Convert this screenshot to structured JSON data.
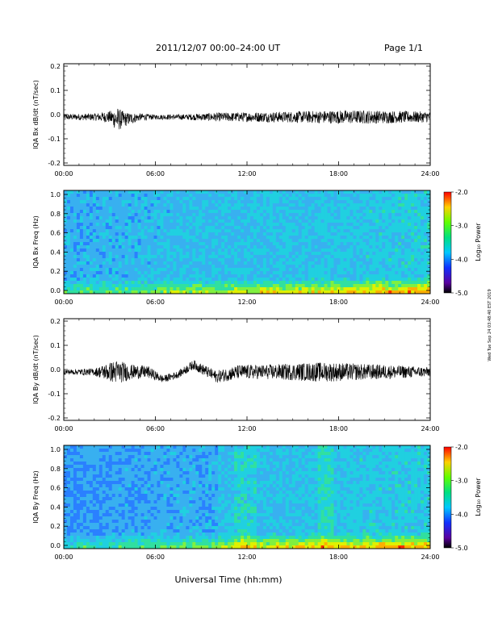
{
  "header": {
    "date_range": "2011/12/07  00:00–24:00 UT",
    "page": "Page 1/1"
  },
  "footer": {
    "xlabel": "Universal Time (hh:mm)"
  },
  "side_note": "Wed Tue Sep 24 03:48:40 EST 2019",
  "colors": {
    "trace": "#000000",
    "axis": "#000000"
  },
  "chart_data": [
    {
      "type": "line",
      "ylabel": "IQA Bx dB/dt (nT/sec)",
      "x_ticks": [
        "00:00",
        "06:00",
        "12:00",
        "18:00",
        "24:00"
      ],
      "x_range_hours": [
        0,
        24
      ],
      "ylim": [
        -0.2,
        0.2
      ],
      "y_ticks": [
        "0.2",
        "0.1",
        "0.0",
        "-0.1",
        "-0.2"
      ],
      "envelope": {
        "hours": [
          0,
          2,
          3,
          3.5,
          4,
          5,
          6,
          8,
          10,
          12,
          14,
          16,
          18,
          20,
          22,
          24
        ],
        "center": [
          -0.01,
          -0.01,
          -0.01,
          -0.02,
          -0.02,
          -0.01,
          -0.01,
          -0.01,
          -0.01,
          -0.01,
          -0.01,
          -0.01,
          -0.01,
          -0.01,
          -0.01,
          -0.01
        ],
        "amplitude": [
          0.012,
          0.015,
          0.025,
          0.05,
          0.03,
          0.015,
          0.01,
          0.012,
          0.018,
          0.02,
          0.022,
          0.025,
          0.028,
          0.028,
          0.025,
          0.022
        ]
      }
    },
    {
      "type": "heatmap",
      "ylabel": "IQA Bx Freq (Hz)",
      "x_ticks": [
        "00:00",
        "06:00",
        "12:00",
        "18:00",
        "24:00"
      ],
      "ylim": [
        0.0,
        1.0
      ],
      "y_ticks": [
        "1.0",
        "0.8",
        "0.6",
        "0.4",
        "0.2",
        "0.0"
      ],
      "colorbar": {
        "label": "Log₁₀ Power",
        "range": [
          -5.0,
          -2.0
        ],
        "ticks": [
          "-2.0",
          "-3.0",
          "-4.0",
          "-5.0"
        ]
      }
    },
    {
      "type": "line",
      "ylabel": "IQA By dB/dt (nT/sec)",
      "x_ticks": [
        "00:00",
        "06:00",
        "12:00",
        "18:00",
        "24:00"
      ],
      "x_range_hours": [
        0,
        24
      ],
      "ylim": [
        -0.2,
        0.2
      ],
      "y_ticks": [
        "0.2",
        "0.1",
        "0.0",
        "-0.1",
        "-0.2"
      ],
      "envelope": {
        "hours": [
          0,
          2,
          3,
          3.5,
          4.5,
          5.5,
          6.5,
          7.5,
          8.5,
          10,
          11.5,
          13,
          15,
          16.5,
          17.5,
          19,
          21,
          24
        ],
        "center": [
          -0.01,
          -0.01,
          -0.01,
          -0.01,
          -0.01,
          -0.01,
          -0.04,
          -0.02,
          0.02,
          -0.03,
          -0.01,
          -0.01,
          -0.01,
          -0.01,
          -0.01,
          -0.01,
          -0.01,
          -0.01
        ],
        "amplitude": [
          0.01,
          0.015,
          0.04,
          0.05,
          0.03,
          0.025,
          0.015,
          0.015,
          0.02,
          0.025,
          0.03,
          0.03,
          0.035,
          0.04,
          0.04,
          0.035,
          0.03,
          0.02
        ]
      }
    },
    {
      "type": "heatmap",
      "ylabel": "IQA By Freq (Hz)",
      "x_ticks": [
        "00:00",
        "06:00",
        "12:00",
        "18:00",
        "24:00"
      ],
      "ylim": [
        0.0,
        1.0
      ],
      "y_ticks": [
        "1.0",
        "0.8",
        "0.6",
        "0.4",
        "0.2",
        "0.0"
      ],
      "colorbar": {
        "label": "Log₁₀ Power",
        "range": [
          -5.0,
          -2.0
        ],
        "ticks": [
          "-2.0",
          "-3.0",
          "-4.0",
          "-5.0"
        ]
      }
    }
  ]
}
